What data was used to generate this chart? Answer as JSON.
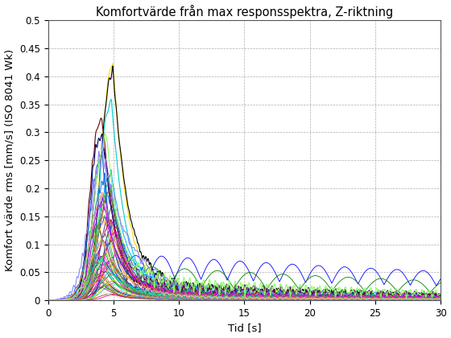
{
  "title": "Komfortvärde från max responsspektra, Z-riktning",
  "xlabel": "Tid [s]",
  "ylabel": "Komfort värde rms [mm/s] (ISO 8041 Wk)",
  "xlim": [
    0,
    30
  ],
  "ylim": [
    0,
    0.5
  ],
  "yticks": [
    0,
    0.05,
    0.1,
    0.15,
    0.2,
    0.25,
    0.3,
    0.35,
    0.4,
    0.45,
    0.5
  ],
  "xticks": [
    0,
    5,
    10,
    15,
    20,
    25,
    30
  ],
  "num_curves": 65,
  "seed": 7,
  "background_color": "#ffffff",
  "grid_color": "#999999",
  "title_fontsize": 10.5,
  "label_fontsize": 9.5,
  "tick_fontsize": 8.5
}
